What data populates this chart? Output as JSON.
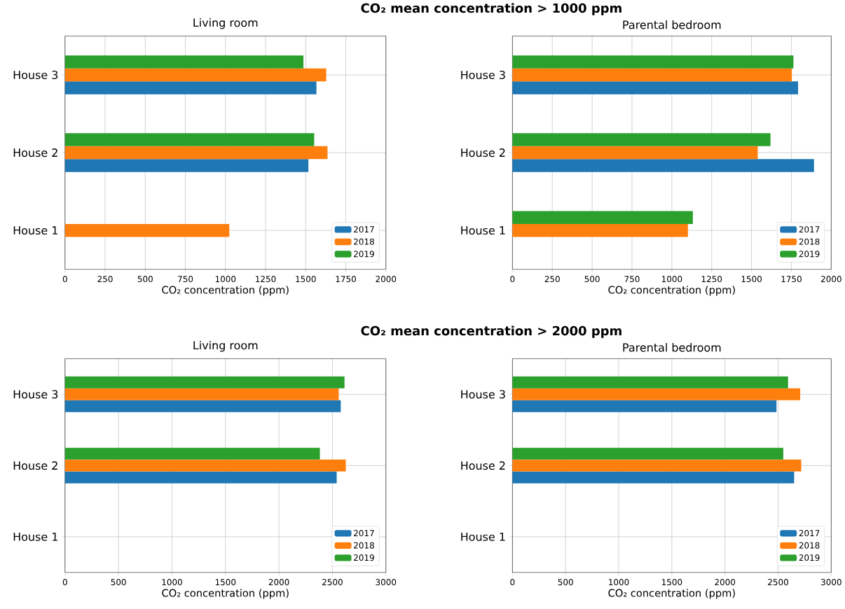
{
  "chart_data": [
    {
      "type": "bar",
      "orientation": "horizontal",
      "title": "Living room",
      "xlabel": "CO₂ concentration (ppm)",
      "annotations": [
        "CO₂ mean concentration > 1000 ppm"
      ],
      "categories": [
        "House 3",
        "House 2",
        "House 1"
      ],
      "xlim": [
        0,
        2000
      ],
      "xticks": [
        0,
        250,
        500,
        750,
        1000,
        1250,
        1500,
        1750,
        2000
      ],
      "grid": true,
      "legend": "bottom right",
      "series": [
        {
          "name": "2017",
          "color": "#1f77b4",
          "values": [
            1567,
            1517,
            null
          ]
        },
        {
          "name": "2018",
          "color": "#ff7f0e",
          "values": [
            1628,
            1636,
            1024
          ]
        },
        {
          "name": "2019",
          "color": "#2ca02c",
          "values": [
            1486,
            1553,
            null
          ]
        }
      ]
    },
    {
      "type": "bar",
      "orientation": "horizontal",
      "title": "Parental bedroom",
      "xlabel": "CO₂ concentration (ppm)",
      "categories": [
        "House 3",
        "House 2",
        "House 1"
      ],
      "xlim": [
        0,
        2000
      ],
      "xticks": [
        0,
        250,
        500,
        750,
        1000,
        1250,
        1500,
        1750,
        2000
      ],
      "grid": true,
      "legend": "bottom right",
      "series": [
        {
          "name": "2017",
          "color": "#1f77b4",
          "values": [
            1792,
            1892,
            null
          ]
        },
        {
          "name": "2018",
          "color": "#ff7f0e",
          "values": [
            1753,
            1539,
            1101
          ]
        },
        {
          "name": "2019",
          "color": "#2ca02c",
          "values": [
            1763,
            1619,
            1132
          ]
        }
      ]
    },
    {
      "type": "bar",
      "orientation": "horizontal",
      "title": "Living room",
      "xlabel": "CO₂ concentration (ppm)",
      "annotations": [
        "CO₂ mean concentration > 2000 ppm"
      ],
      "categories": [
        "House 3",
        "House 2",
        "House 1"
      ],
      "xlim": [
        0,
        3000
      ],
      "xticks": [
        0,
        500,
        1000,
        1500,
        2000,
        2500,
        3000
      ],
      "grid": true,
      "legend": "bottom right",
      "series": [
        {
          "name": "2017",
          "color": "#1f77b4",
          "values": [
            2578,
            2540,
            null
          ]
        },
        {
          "name": "2018",
          "color": "#ff7f0e",
          "values": [
            2559,
            2625,
            null
          ]
        },
        {
          "name": "2019",
          "color": "#2ca02c",
          "values": [
            2613,
            2383,
            null
          ]
        }
      ]
    },
    {
      "type": "bar",
      "orientation": "horizontal",
      "title": "Parental bedroom",
      "xlabel": "CO₂ concentration (ppm)",
      "categories": [
        "House 3",
        "House 2",
        "House 1"
      ],
      "xlim": [
        0,
        3000
      ],
      "xticks": [
        0,
        500,
        1000,
        1500,
        2000,
        2500,
        3000
      ],
      "grid": true,
      "legend": "bottom right",
      "series": [
        {
          "name": "2017",
          "color": "#1f77b4",
          "values": [
            2485,
            2651,
            null
          ]
        },
        {
          "name": "2018",
          "color": "#ff7f0e",
          "values": [
            2708,
            2718,
            null
          ]
        },
        {
          "name": "2019",
          "color": "#2ca02c",
          "values": [
            2594,
            2549,
            null
          ]
        }
      ]
    }
  ]
}
